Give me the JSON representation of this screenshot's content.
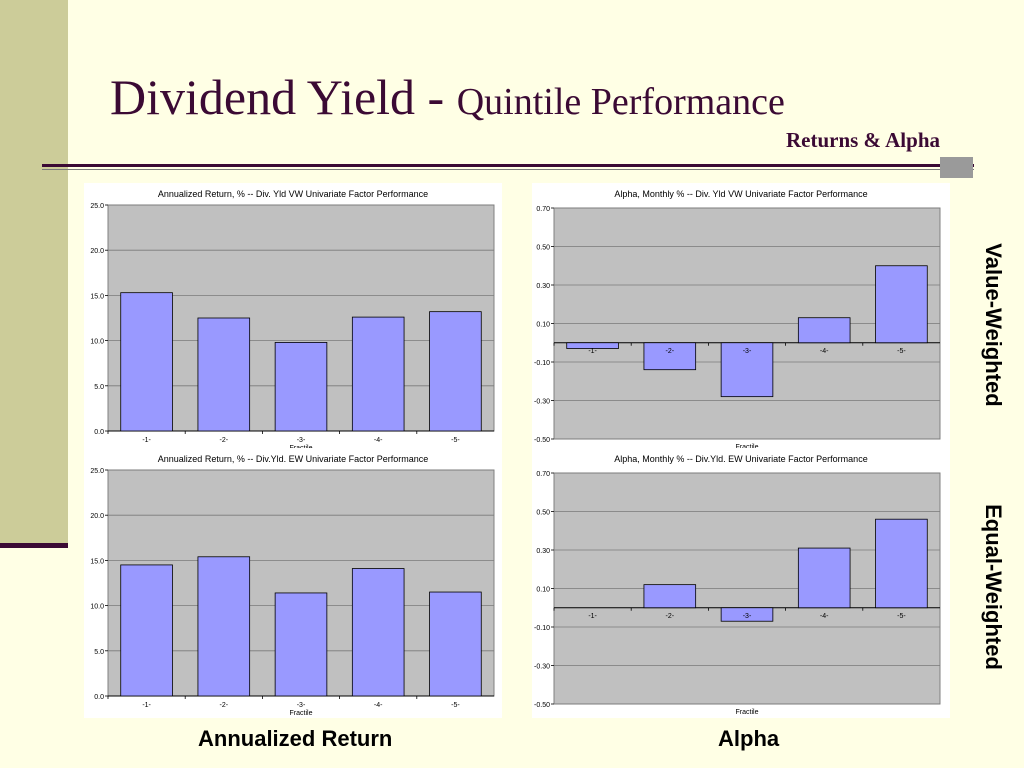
{
  "slide": {
    "title_main": "Dividend Yield - ",
    "title_sub": "Quintile Performance",
    "subtitle": "Returns & Alpha",
    "row_label_top": "Value-Weighted",
    "row_label_bottom": "Equal-Weighted",
    "bottom_label_left": "Annualized Return",
    "bottom_label_right": "Alpha"
  },
  "colors": {
    "bar_fill": "#9999FF",
    "plot_bg": "#C0C0C0",
    "title_color": "#3B0A34"
  },
  "chart_data": [
    {
      "type": "bar",
      "title": "Annualized Return, %  -- Div. Yld VW Univariate Factor Performance",
      "xlabel": "Fractile",
      "ylabel": "",
      "categories": [
        "-1-",
        "-2-",
        "-3-",
        "-4-",
        "-5-"
      ],
      "values": [
        15.3,
        12.5,
        9.8,
        12.6,
        13.2
      ],
      "ylim": [
        0,
        25
      ],
      "yticks": [
        "0.0",
        "5.0",
        "10.0",
        "15.0",
        "20.0",
        "25.0"
      ],
      "grid": true
    },
    {
      "type": "bar",
      "title": "Alpha, Monthly %  -- Div. Yld VW Univariate Factor Performance",
      "xlabel": "Fractile",
      "ylabel": "",
      "categories": [
        "-1-",
        "-2-",
        "-3-",
        "-4-",
        "-5-"
      ],
      "values": [
        -0.03,
        -0.14,
        -0.28,
        0.13,
        0.4
      ],
      "ylim": [
        -0.5,
        0.7
      ],
      "yticks": [
        "-0.50",
        "-0.30",
        "-0.10",
        "0.10",
        "0.30",
        "0.50",
        "0.70"
      ],
      "grid": true
    },
    {
      "type": "bar",
      "title": "Annualized Return, %  -- Div.Yld. EW Univariate Factor Performance",
      "xlabel": "Fractile",
      "ylabel": "",
      "categories": [
        "-1-",
        "-2-",
        "-3-",
        "-4-",
        "-5-"
      ],
      "values": [
        14.5,
        15.4,
        11.4,
        14.1,
        11.5
      ],
      "ylim": [
        0,
        25
      ],
      "yticks": [
        "0.0",
        "5.0",
        "10.0",
        "15.0",
        "20.0",
        "25.0"
      ],
      "grid": true
    },
    {
      "type": "bar",
      "title": "Alpha, Monthly %  -- Div.Yld. EW Univariate Factor Performance",
      "xlabel": "Fractile",
      "ylabel": "",
      "categories": [
        "-1-",
        "-2-",
        "-3-",
        "-4-",
        "-5-"
      ],
      "values": [
        0.0,
        0.12,
        -0.07,
        0.31,
        0.46
      ],
      "ylim": [
        -0.5,
        0.7
      ],
      "yticks": [
        "-0.50",
        "-0.30",
        "-0.10",
        "0.10",
        "0.30",
        "0.50",
        "0.70"
      ],
      "grid": true
    }
  ]
}
